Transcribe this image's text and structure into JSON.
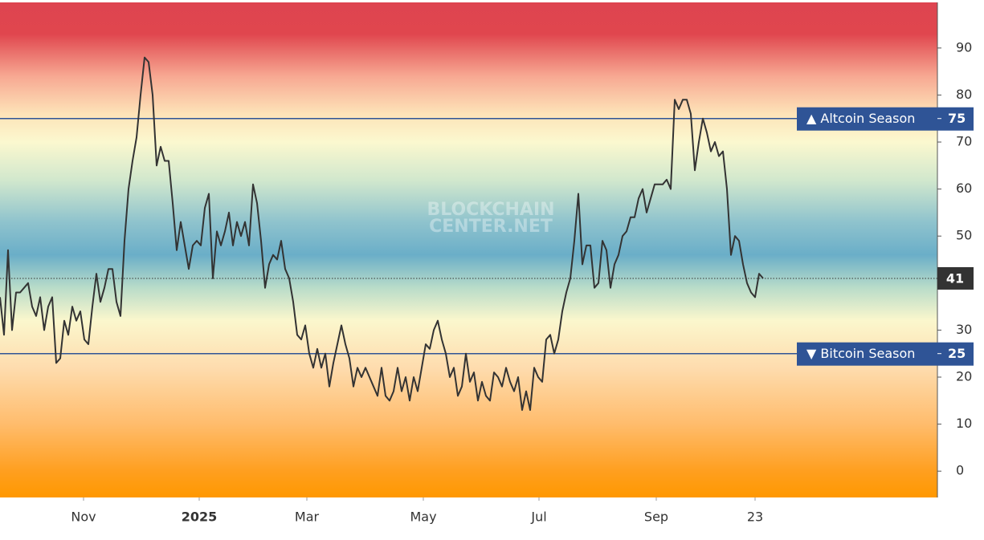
{
  "chart_data": {
    "type": "line",
    "watermark": [
      "BLOCKCHAIN",
      "CENTER.NET"
    ],
    "series": [
      {
        "color": "#333333",
        "values": [
          37,
          29,
          47,
          30,
          38,
          38,
          39,
          40,
          35,
          33,
          37,
          30,
          35,
          37,
          23,
          24,
          32,
          29,
          35,
          32,
          34,
          28,
          27,
          35,
          42,
          36,
          39,
          43,
          43,
          36,
          33,
          49,
          60,
          66,
          71,
          80,
          88,
          87,
          80,
          65,
          69,
          66,
          66,
          57,
          47,
          53,
          48,
          43,
          48,
          49,
          48,
          56,
          59,
          41,
          51,
          48,
          51,
          55,
          48,
          53,
          50,
          53,
          48,
          61,
          57,
          49,
          39,
          44,
          46,
          45,
          49,
          43,
          41,
          36,
          29,
          28,
          31,
          25,
          22,
          26,
          22,
          25,
          18,
          23,
          27,
          31,
          27,
          24,
          18,
          22,
          20,
          22,
          20,
          18,
          16,
          22,
          16,
          15,
          17,
          22,
          17,
          20,
          15,
          20,
          17,
          22,
          27,
          26,
          30,
          32,
          28,
          25,
          20,
          22,
          16,
          18,
          25,
          19,
          21,
          15,
          19,
          16,
          15,
          21,
          20,
          18,
          22,
          19,
          17,
          20,
          13,
          17,
          13,
          22,
          20,
          19,
          28,
          29,
          25,
          28,
          34,
          38,
          41,
          49,
          59,
          44,
          48,
          48,
          39,
          40,
          49,
          47,
          39,
          44,
          46,
          50,
          51,
          54,
          54,
          58,
          60,
          55,
          58,
          61,
          61,
          61,
          62,
          60,
          79,
          77,
          79,
          79,
          76,
          64,
          70,
          75,
          72,
          68,
          70,
          67,
          68,
          60,
          46,
          50,
          49,
          44,
          40,
          38,
          37,
          42,
          41
        ]
      }
    ],
    "xlim": [
      0,
      233.4
    ],
    "xticks": [
      {
        "value": 20.8,
        "label": "Nov"
      },
      {
        "value": 49.6,
        "label": "2025"
      },
      {
        "value": 76.4,
        "label": "Mar"
      },
      {
        "value": 105.4,
        "label": "May"
      },
      {
        "value": 134.2,
        "label": "Jul"
      },
      {
        "value": 163.4,
        "label": "Sep"
      },
      {
        "value": 188,
        "label": "23"
      }
    ],
    "ylim": [
      -5.6,
      99.7
    ],
    "yticks": [
      0,
      10,
      20,
      30,
      40,
      50,
      60,
      70,
      80,
      90
    ],
    "reference_lines": [
      {
        "label": "▲ Altcoin Season",
        "value": 75,
        "color": "#2f5496"
      },
      {
        "label": "▼ Bitcoin Season",
        "value": 25,
        "color": "#2f5496"
      }
    ],
    "current_value": 41,
    "background_gradient": [
      {
        "value": 99.7,
        "color": "#de4450"
      },
      {
        "value": 93,
        "color": "#e0464e"
      },
      {
        "value": 84,
        "color": "#f7a892"
      },
      {
        "value": 76,
        "color": "#fde3b8"
      },
      {
        "value": 70,
        "color": "#fbf8cf"
      },
      {
        "value": 62,
        "color": "#d2e8cd"
      },
      {
        "value": 53,
        "color": "#8fc3cd"
      },
      {
        "value": 46,
        "color": "#6aaec8"
      },
      {
        "value": 39,
        "color": "#b9dcc9"
      },
      {
        "value": 32,
        "color": "#fbf7cd"
      },
      {
        "value": 22,
        "color": "#fedcae"
      },
      {
        "value": 10,
        "color": "#ffbc6c"
      },
      {
        "value": 0,
        "color": "#ff9f1f"
      },
      {
        "value": -5.6,
        "color": "#ff9800"
      }
    ]
  }
}
